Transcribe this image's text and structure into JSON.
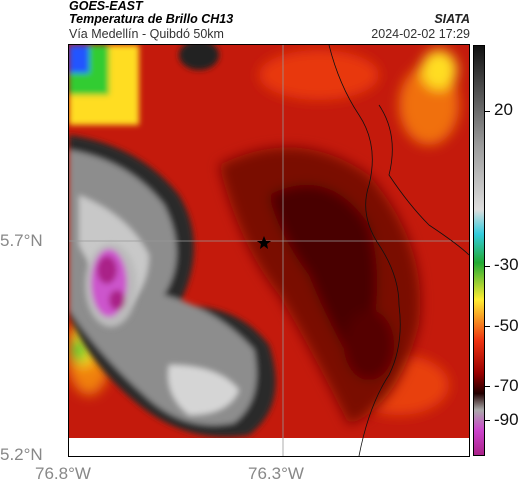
{
  "header": {
    "source": "GOES-EAST",
    "product": "Temperatura de Brillo CH13",
    "area": "Vía Medellín - Quibdó 50km",
    "org": "SIATA",
    "timestamp": "2024-02-02 17:29"
  },
  "axes": {
    "lat_labels": [
      "5.7°N",
      "5.2°N"
    ],
    "lon_labels": [
      "76.8°W",
      "76.3°W"
    ]
  },
  "colorbar": {
    "labels": [
      "20",
      "-30",
      "-50",
      "-70",
      "-90"
    ],
    "colors": [
      "#111111",
      "#888888",
      "#dddddd",
      "#33ccdd",
      "#22aa33",
      "#ffee33",
      "#ee3311",
      "#990000",
      "#220000",
      "#aaaaaa",
      "#cc44cc",
      "#aa2288"
    ]
  },
  "map": {
    "marker": "star-icon",
    "colors": {
      "background": "#c41a0c",
      "dark_red": "#6b0705",
      "cloud_gray": "#8d8d8d",
      "cloud_light": "#c8c8c8",
      "cold_magenta": "#cc55cc",
      "warm_yellow": "#ffdd22",
      "warm_green": "#33cc33",
      "cold_blue": "#2255ff"
    }
  }
}
